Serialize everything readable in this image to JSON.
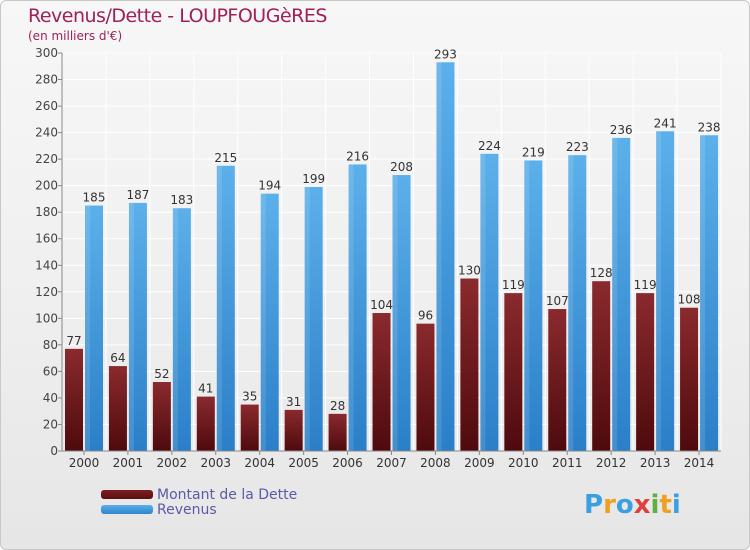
{
  "header": {
    "title": "Revenus/Dette - LOUPFOUGèRES",
    "subtitle": "(en milliers d'€)"
  },
  "legend": {
    "dette": "Montant de la Dette",
    "revenus": "Revenus"
  },
  "logo": {
    "text": "Proxiti"
  },
  "colors": {
    "dette": "#6b1518",
    "revenus": "#3b93da",
    "title": "#a0205a",
    "grid": "#ffffff"
  },
  "chart_data": {
    "type": "bar",
    "title": "Revenus/Dette - LOUPFOUGèRES",
    "ylabel": "(en milliers d'€)",
    "xlabel": "",
    "ylim": [
      0,
      300
    ],
    "ytick_step": 20,
    "categories": [
      "2000",
      "2001",
      "2002",
      "2003",
      "2004",
      "2005",
      "2006",
      "2007",
      "2008",
      "2009",
      "2010",
      "2011",
      "2012",
      "2013",
      "2014"
    ],
    "series": [
      {
        "name": "Montant de la Dette",
        "values": [
          77,
          64,
          52,
          41,
          35,
          31,
          28,
          104,
          96,
          130,
          119,
          107,
          128,
          119,
          108
        ]
      },
      {
        "name": "Revenus",
        "values": [
          185,
          187,
          183,
          215,
          194,
          199,
          216,
          208,
          293,
          224,
          219,
          223,
          236,
          241,
          238
        ]
      }
    ],
    "legend_position": "bottom-left"
  }
}
